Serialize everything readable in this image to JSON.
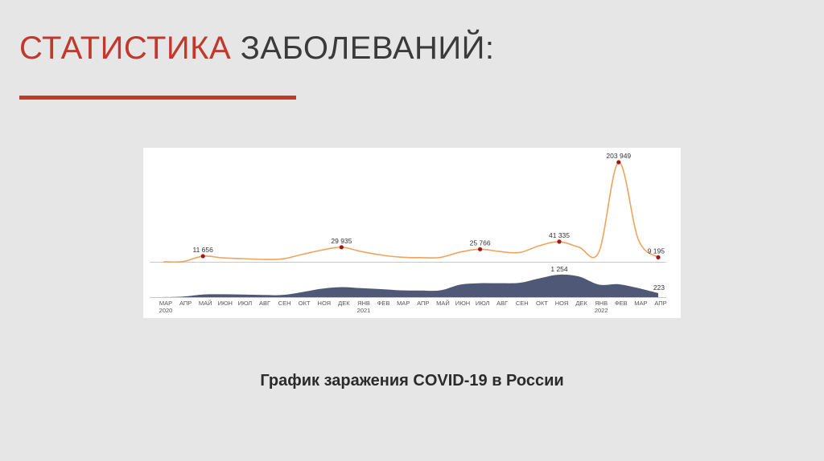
{
  "slide": {
    "title_accent": "СТАТИСТИКА",
    "title_rest": "ЗАБОЛЕВАНИЙ:",
    "caption": "График заражения COVID-19 в России",
    "accent_color": "#c0392b"
  },
  "chart_data": {
    "type": "area",
    "x_labels": [
      "МАР",
      "АПР",
      "МАЙ",
      "ИЮН",
      "ИЮЛ",
      "АВГ",
      "СЕН",
      "ОКТ",
      "НОЯ",
      "ДЕК",
      "ЯНВ",
      "ФЕВ",
      "МАР",
      "АПР",
      "МАЙ",
      "ИЮН",
      "ИЮЛ",
      "АВГ",
      "СЕН",
      "ОКТ",
      "НОЯ",
      "ДЕК",
      "ЯНВ",
      "ФЕВ",
      "МАР",
      "АПР"
    ],
    "year_labels": [
      {
        "month_index": 0,
        "label": "2020"
      },
      {
        "month_index": 10,
        "label": "2021"
      },
      {
        "month_index": 22,
        "label": "2022"
      }
    ],
    "series": [
      {
        "kind": "cases",
        "color": "#f0a35e",
        "marker_color": "#a31515",
        "values": [
          0,
          500,
          11656,
          8000,
          6500,
          5000,
          6000,
          15000,
          24000,
          29935,
          21000,
          14000,
          9500,
          8500,
          9000,
          20000,
          25766,
          21000,
          19000,
          33000,
          41335,
          30000,
          20000,
          203949,
          45000,
          9195
        ],
        "annotations": [
          {
            "month_index": 2,
            "value": 11656,
            "label": "11 656"
          },
          {
            "month_index": 9,
            "value": 29935,
            "label": "29 935"
          },
          {
            "month_index": 16,
            "value": 25766,
            "label": "25 766"
          },
          {
            "month_index": 20,
            "value": 41335,
            "label": "41 335"
          },
          {
            "month_index": 23,
            "value": 203949,
            "label": "203 949"
          },
          {
            "month_index": 25,
            "value": 9195,
            "label": "9 195"
          }
        ]
      },
      {
        "kind": "deaths",
        "color": "#4f5876",
        "values": [
          0,
          30,
          150,
          160,
          150,
          120,
          120,
          280,
          470,
          560,
          500,
          450,
          380,
          370,
          380,
          700,
          780,
          780,
          800,
          1050,
          1254,
          1150,
          700,
          720,
          500,
          223
        ],
        "annotations": [
          {
            "month_index": 20,
            "value": 1254,
            "label": "1 254"
          },
          {
            "month_index": 25,
            "value": 223,
            "label": "223"
          }
        ]
      }
    ]
  }
}
